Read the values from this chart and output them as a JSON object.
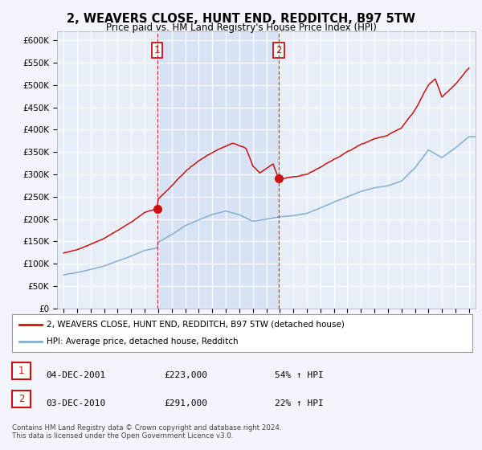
{
  "title": "2, WEAVERS CLOSE, HUNT END, REDDITCH, B97 5TW",
  "subtitle": "Price paid vs. HM Land Registry's House Price Index (HPI)",
  "ylabel_ticks": [
    "£0",
    "£50K",
    "£100K",
    "£150K",
    "£200K",
    "£250K",
    "£300K",
    "£350K",
    "£400K",
    "£450K",
    "£500K",
    "£550K",
    "£600K"
  ],
  "ytick_vals": [
    0,
    50000,
    100000,
    150000,
    200000,
    250000,
    300000,
    350000,
    400000,
    450000,
    500000,
    550000,
    600000
  ],
  "ylim": [
    0,
    620000
  ],
  "xlim_start": 1994.5,
  "xlim_end": 2025.5,
  "background_color": "#f2f5fb",
  "plot_bg_color": "#e8eef8",
  "shade_color": "#d0ddf5",
  "grid_color": "#ffffff",
  "sale1_year": 2001.92,
  "sale1_price": 223000,
  "sale2_year": 2010.92,
  "sale2_price": 291000,
  "legend_line1": "2, WEAVERS CLOSE, HUNT END, REDDITCH, B97 5TW (detached house)",
  "legend_line2": "HPI: Average price, detached house, Redditch",
  "table_row1": [
    "1",
    "04-DEC-2001",
    "£223,000",
    "54% ↑ HPI"
  ],
  "table_row2": [
    "2",
    "03-DEC-2010",
    "£291,000",
    "22% ↑ HPI"
  ],
  "footnote": "Contains HM Land Registry data © Crown copyright and database right 2024.\nThis data is licensed under the Open Government Licence v3.0.",
  "hpi_color": "#7fafd4",
  "price_color": "#cc1111",
  "vline_color": "#cc1111"
}
